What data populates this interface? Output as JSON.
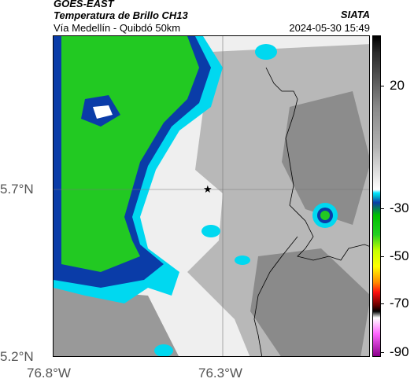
{
  "header": {
    "title1": "GOES-EAST",
    "title2": "Temperatura de Brillo CH13",
    "subtitle": "Vía Medellín - Quibdó 50km",
    "org": "SIATA",
    "datetime": "2024-05-30 15:49"
  },
  "map": {
    "lat_labels": [
      "5.7°N",
      "5.2°N"
    ],
    "lon_labels": [
      "76.8°W",
      "76.3°W"
    ],
    "marker_icon": "star-icon",
    "colors": {
      "background_light": "#f4f4f4",
      "gray_cloud": "#9a9a9a",
      "cold_cyan": "#00d8f0",
      "cold_blue": "#0a3ca8",
      "cold_green": "#22c922",
      "border_line": "#000000"
    }
  },
  "colorbar": {
    "labels": [
      "20",
      "-30",
      "-50",
      "-70",
      "-90"
    ]
  }
}
